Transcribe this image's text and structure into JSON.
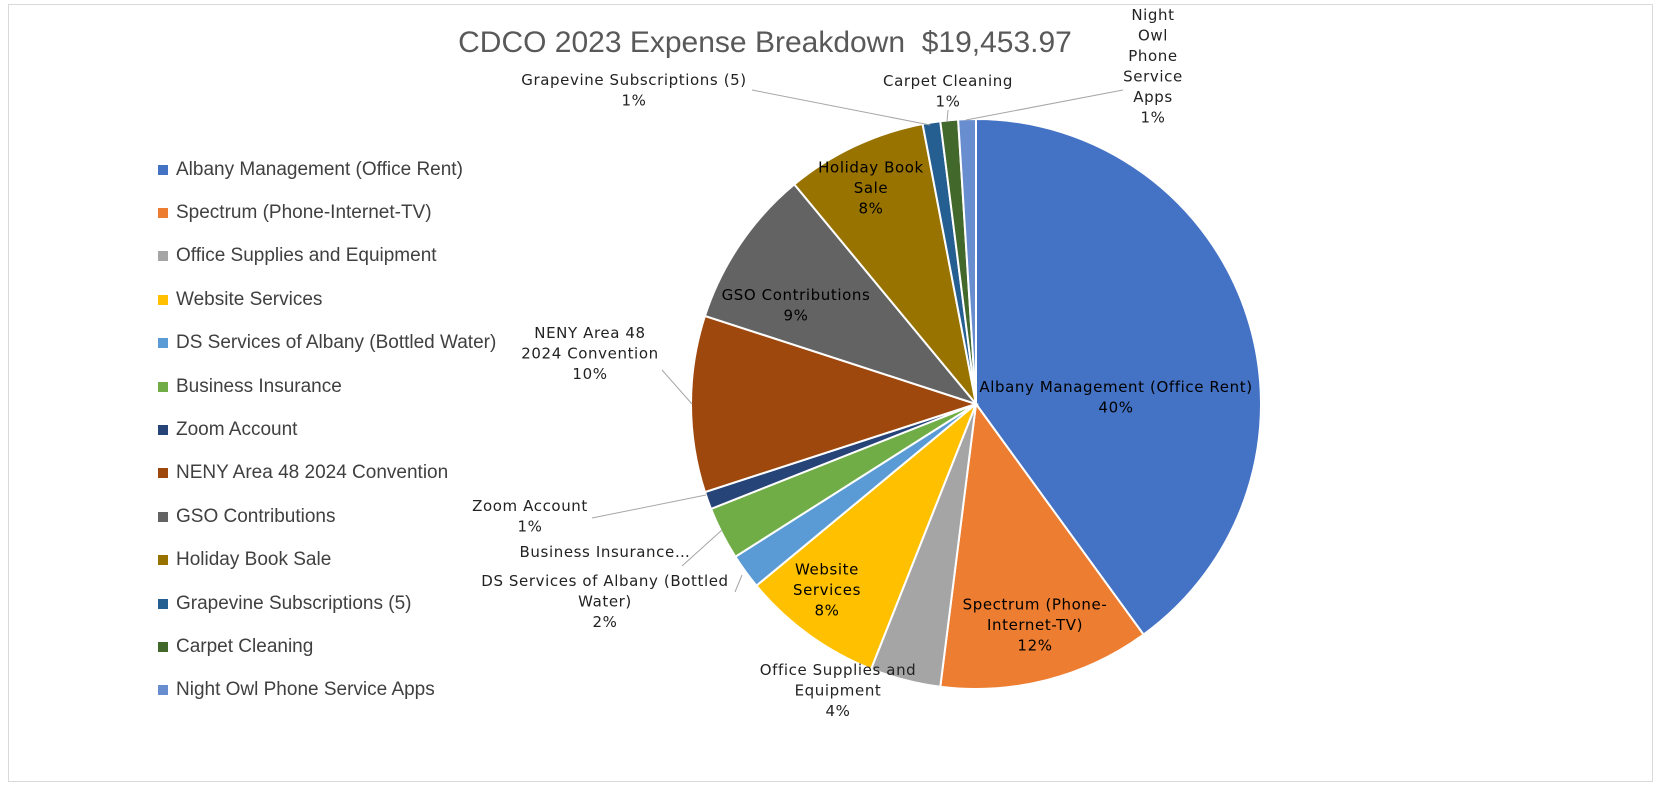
{
  "chart_data": {
    "type": "pie",
    "title": "CDCO 2023 Expense Breakdown  $19,453.97",
    "legend_position": "left",
    "slices": [
      {
        "name": "Albany Management (Office Rent)",
        "value": 40,
        "color": "#4472C4",
        "label_lines": [
          "Albany Management (Office Rent)",
          "40%"
        ]
      },
      {
        "name": "Spectrum (Phone-Internet-TV)",
        "value": 12,
        "color": "#ED7D31",
        "label_lines": [
          "Spectrum (Phone-",
          "Internet-TV)",
          "12%"
        ]
      },
      {
        "name": "Office Supplies and Equipment",
        "value": 4,
        "color": "#A5A5A5",
        "label_lines": [
          "Office Supplies and",
          "Equipment",
          "4%"
        ]
      },
      {
        "name": "Website Services",
        "value": 8,
        "color": "#FFC000",
        "label_lines": [
          "Website",
          "Services",
          "8%"
        ]
      },
      {
        "name": "DS Services of Albany (Bottled Water)",
        "value": 2,
        "color": "#5B9BD5",
        "label_lines": [
          "DS Services of Albany (Bottled",
          "Water)",
          "2%"
        ]
      },
      {
        "name": "Business Insurance",
        "value": 3,
        "color": "#70AD47",
        "label_lines": [
          "Business Insurance…"
        ]
      },
      {
        "name": "Zoom Account",
        "value": 1,
        "color": "#264478",
        "label_lines": [
          "Zoom Account",
          "1%"
        ]
      },
      {
        "name": "NENY Area 48 2024 Convention",
        "value": 10,
        "color": "#9E480E",
        "label_lines": [
          "NENY Area 48",
          "2024 Convention",
          "10%"
        ]
      },
      {
        "name": "GSO Contributions",
        "value": 9,
        "color": "#636363",
        "label_lines": [
          "GSO Contributions",
          "9%"
        ]
      },
      {
        "name": "Holiday Book Sale",
        "value": 8,
        "color": "#997300",
        "label_lines": [
          "Holiday Book",
          "Sale",
          "8%"
        ]
      },
      {
        "name": "Grapevine Subscriptions (5)",
        "value": 1,
        "color": "#255E91",
        "label_lines": [
          "Grapevine Subscriptions (5)",
          "1%"
        ]
      },
      {
        "name": "Carpet Cleaning",
        "value": 1,
        "color": "#43682B",
        "label_lines": [
          "Carpet Cleaning",
          "1%"
        ]
      },
      {
        "name": "Night Owl Phone Service Apps",
        "value": 1,
        "color": "#698ED0",
        "label_lines": [
          "Night",
          "Owl",
          "Phone",
          "Service",
          "Apps",
          "1%"
        ]
      }
    ]
  }
}
